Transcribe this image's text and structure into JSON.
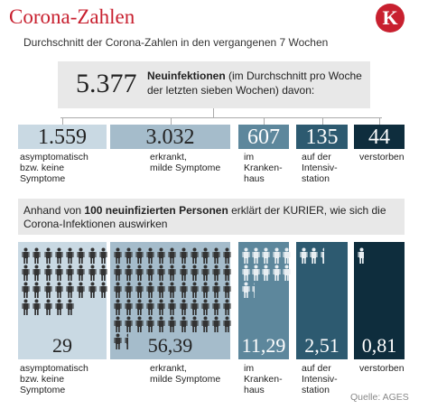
{
  "header": {
    "title": "Corona-Zahlen",
    "logo": "K",
    "subtitle": "Durchschnitt der Corona-Zahlen in den vergangenen 7 Wochen"
  },
  "summary": {
    "value": "5.377",
    "bold": "Neuinfektionen",
    "text": " (im Durchschnitt pro Woche der letzten sieben Wochen) davon:"
  },
  "totals": [
    {
      "value": "1.559",
      "lines": [
        "asymptomatisch",
        "bzw. keine",
        "Symptome"
      ]
    },
    {
      "value": "3.032",
      "lines": [
        "erkrankt,",
        "milde Symptome"
      ]
    },
    {
      "value": "607",
      "lines": [
        "im",
        "Kranken-",
        "haus"
      ]
    },
    {
      "value": "135",
      "lines": [
        "auf der",
        "Intensiv-",
        "station"
      ]
    },
    {
      "value": "44",
      "lines": [
        "verstorben"
      ]
    }
  ],
  "intro": {
    "pre": "Anhand von ",
    "bold": "100 neuinfizierten Personen",
    "post": " erklärt der KURIER, wie sich die Corona-Infektionen auswirken"
  },
  "per_hundred": [
    {
      "value": 29,
      "lines": [
        "asymptomatisch",
        "bzw. keine",
        "Symptome"
      ]
    },
    {
      "value": 56.39,
      "label": "56,39",
      "lines": [
        "erkrankt,",
        "milde Symptome"
      ]
    },
    {
      "value": 11.29,
      "label": "11,29",
      "lines": [
        "im",
        "Kranken-",
        "haus"
      ]
    },
    {
      "value": 2.51,
      "label": "2,51",
      "lines": [
        "auf der",
        "Intensiv-",
        "station"
      ]
    },
    {
      "value": 0.81,
      "label": "0,81",
      "lines": [
        "verstorben"
      ]
    }
  ],
  "source": "Quelle: AGES"
}
